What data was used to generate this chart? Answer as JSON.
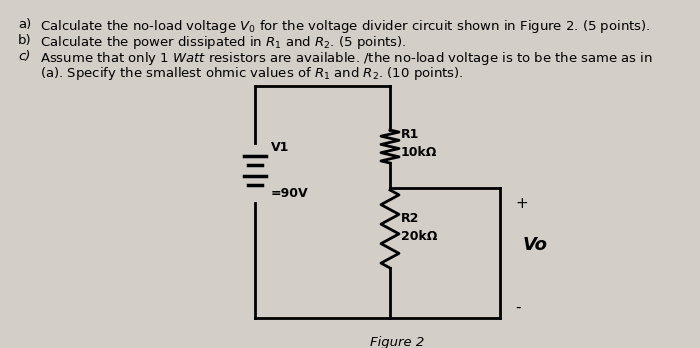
{
  "bg_color": "#d4cec8",
  "circuit_bg": "#e8e4e0",
  "text_color": "#000000",
  "line_a": "Calculate the no-load voltage $V_0$ for the voltage divider circuit shown in Figure 2. (5 points).",
  "line_b": "Calculate the power dissipated in $R_1$ and $R_2$. (5 points).",
  "line_c1": "Assume that only 1 $Watt$ resistors are available. /the no-load voltage is to be the same as in",
  "line_c2": "(a). Specify the smallest ohmic values of $R_1$ and $R_2$. (10 points).",
  "label_a": "a)",
  "label_b": "b)",
  "label_c": "c)",
  "V1_label": "V1",
  "V1_value": "90V",
  "R1_label": "R1",
  "R1_value": "10kΩ",
  "R2_label": "R2",
  "R2_value": "20kΩ",
  "Vo_label": "Vo",
  "plus_sign": "+",
  "minus_sign": "-",
  "figure_label": "Figure 2",
  "fontsize_text": 9.5,
  "fontsize_circuit": 8.5,
  "fontsize_vo": 13
}
